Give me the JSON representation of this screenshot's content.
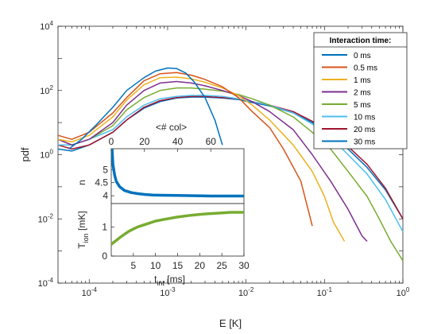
{
  "chart_data": [
    {
      "type": "line",
      "xlabel": "E [K]",
      "ylabel": "pdf",
      "xscale": "log",
      "yscale": "log",
      "xlim": [
        4e-05,
        1
      ],
      "ylim": [
        0.0001,
        10000
      ],
      "x_ticks": [
        "10^-4",
        "10^-3",
        "10^-2",
        "10^-1",
        "10^0"
      ],
      "y_ticks": [
        "10^-4",
        "10^-2",
        "10^0",
        "10^2",
        "10^4"
      ],
      "legend_title": "Interaction time:",
      "legend_position": "top-right",
      "series": [
        {
          "name": "0 ms",
          "color": "#0072BD",
          "x": [
            5.5e-05,
            8e-05,
            0.00012,
            0.0002,
            0.0003,
            0.0005,
            0.0007,
            0.001,
            0.0013,
            0.0017,
            0.0022,
            0.003,
            0.004,
            0.005
          ],
          "y": [
            1.5,
            3,
            8,
            30,
            100,
            250,
            400,
            500,
            480,
            350,
            180,
            60,
            12,
            2
          ]
        },
        {
          "name": "0.5 ms",
          "color": "#D95319",
          "x": [
            4e-05,
            6e-05,
            0.0001,
            0.0002,
            0.0003,
            0.0005,
            0.0008,
            0.0013,
            0.002,
            0.003,
            0.005,
            0.008,
            0.012,
            0.02,
            0.03,
            0.05,
            0.07
          ],
          "y": [
            4,
            3,
            5,
            20,
            60,
            200,
            330,
            360,
            300,
            220,
            130,
            60,
            22,
            7,
            1.5,
            0.15,
            0.006
          ]
        },
        {
          "name": "1 ms",
          "color": "#EDB120",
          "x": [
            4e-05,
            6e-05,
            0.0001,
            0.0002,
            0.0003,
            0.0005,
            0.0008,
            0.0013,
            0.002,
            0.003,
            0.005,
            0.008,
            0.012,
            0.02,
            0.04,
            0.07,
            0.1,
            0.13,
            0.18
          ],
          "y": [
            3,
            2.5,
            4,
            15,
            50,
            150,
            250,
            260,
            230,
            180,
            120,
            70,
            35,
            12,
            2,
            0.3,
            0.05,
            0.008,
            0.002
          ]
        },
        {
          "name": "2 ms",
          "color": "#7E2F8E",
          "x": [
            4e-05,
            6e-05,
            0.0001,
            0.0002,
            0.0003,
            0.0005,
            0.0008,
            0.0013,
            0.002,
            0.003,
            0.005,
            0.008,
            0.012,
            0.02,
            0.04,
            0.07,
            0.12,
            0.2,
            0.3,
            0.35
          ],
          "y": [
            3,
            2,
            3,
            10,
            35,
            100,
            170,
            190,
            170,
            140,
            100,
            70,
            45,
            22,
            6,
            1,
            0.15,
            0.02,
            0.003,
            0.002
          ]
        },
        {
          "name": "5 ms",
          "color": "#77AC30",
          "x": [
            4e-05,
            6e-05,
            0.0001,
            0.0002,
            0.0003,
            0.0005,
            0.0008,
            0.0013,
            0.002,
            0.003,
            0.005,
            0.008,
            0.012,
            0.02,
            0.04,
            0.07,
            0.12,
            0.2,
            0.35,
            0.5,
            0.7,
            1
          ],
          "y": [
            3,
            2,
            3,
            8,
            25,
            60,
            100,
            120,
            120,
            110,
            95,
            75,
            55,
            35,
            15,
            5,
            1.5,
            0.3,
            0.05,
            0.01,
            0.002,
            0.0005
          ]
        },
        {
          "name": "10 ms",
          "color": "#4DBEEE",
          "x": [
            4e-05,
            6e-05,
            0.0001,
            0.0002,
            0.0003,
            0.0005,
            0.0008,
            0.0013,
            0.002,
            0.003,
            0.005,
            0.008,
            0.012,
            0.02,
            0.04,
            0.07,
            0.12,
            0.2,
            0.35,
            0.6,
            1
          ],
          "y": [
            2,
            2,
            3,
            6,
            15,
            35,
            55,
            65,
            70,
            70,
            65,
            55,
            45,
            35,
            20,
            9,
            3.5,
            1,
            0.25,
            0.04,
            0.004
          ]
        },
        {
          "name": "20 ms",
          "color": "#A2142F",
          "x": [
            4e-05,
            6e-05,
            0.0001,
            0.0002,
            0.0003,
            0.0005,
            0.0008,
            0.0013,
            0.002,
            0.003,
            0.005,
            0.008,
            0.012,
            0.02,
            0.04,
            0.07,
            0.12,
            0.2,
            0.35,
            0.6,
            1
          ],
          "y": [
            2,
            1.5,
            2,
            5,
            12,
            30,
            48,
            60,
            65,
            65,
            60,
            55,
            45,
            35,
            22,
            11,
            5,
            1.8,
            0.5,
            0.09,
            0.01
          ]
        },
        {
          "name": "30 ms",
          "color": "#0072BD",
          "x": [
            4e-05,
            6e-05,
            0.0001,
            0.0002,
            0.0003,
            0.0005,
            0.0008,
            0.0013,
            0.002,
            0.003,
            0.005,
            0.008,
            0.012,
            0.02,
            0.04,
            0.07,
            0.12,
            0.2,
            0.35,
            0.6,
            1
          ],
          "y": [
            1.5,
            1.3,
            2,
            5,
            12,
            28,
            45,
            58,
            62,
            62,
            58,
            52,
            42,
            33,
            20,
            10,
            4.5,
            1.5,
            0.4,
            0.08,
            0.01
          ]
        }
      ]
    },
    {
      "type": "line",
      "xlabel": "<# col>",
      "ylabel": "n",
      "xlim": [
        0,
        80
      ],
      "ylim": [
        3.7,
        5.8
      ],
      "x_ticks": [
        "0",
        "20",
        "40",
        "60"
      ],
      "y_ticks": [
        "4",
        "4.5",
        "5"
      ],
      "series": [
        {
          "color": "#0072BD",
          "x": [
            0.5,
            1,
            2,
            3,
            5,
            8,
            12,
            16,
            20,
            25,
            30,
            40,
            50,
            60,
            70,
            80
          ],
          "y": [
            5.8,
            5.2,
            4.8,
            4.55,
            4.35,
            4.2,
            4.12,
            4.08,
            4.05,
            4.03,
            4.02,
            4.01,
            4.0,
            3.99,
            3.99,
            3.99
          ]
        }
      ]
    },
    {
      "type": "line",
      "xlabel": "t_int [ms]",
      "ylabel": "T_ion [mK]",
      "xlim": [
        0,
        30
      ],
      "ylim": [
        0,
        1.8
      ],
      "x_ticks": [
        "5",
        "10",
        "15",
        "20",
        "25",
        "30"
      ],
      "y_ticks": [
        "0",
        "1"
      ],
      "series": [
        {
          "color": "#77AC30",
          "x": [
            0,
            1,
            2,
            3,
            4,
            5,
            6,
            8,
            10,
            12,
            15,
            18,
            20,
            22,
            25,
            27,
            30
          ],
          "y": [
            0.4,
            0.52,
            0.64,
            0.75,
            0.85,
            0.93,
            1.0,
            1.1,
            1.2,
            1.26,
            1.34,
            1.4,
            1.43,
            1.45,
            1.48,
            1.5,
            1.5
          ]
        }
      ]
    }
  ]
}
